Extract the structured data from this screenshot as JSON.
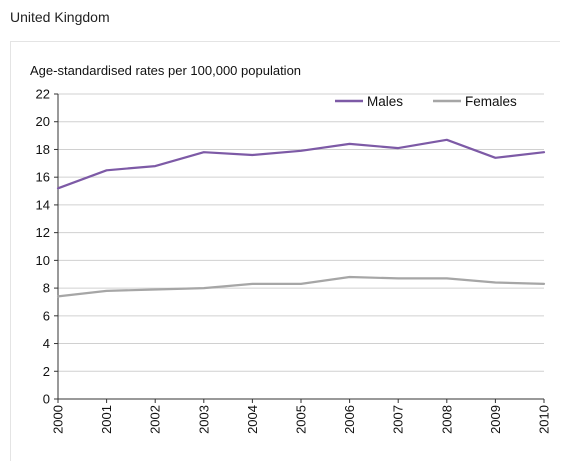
{
  "subtitle": "United Kingdom",
  "chart_data": {
    "type": "line",
    "ylabel": "Age-standardised rates per 100,000 population",
    "categories": [
      "2000",
      "2001",
      "2002",
      "2003",
      "2004",
      "2005",
      "2006",
      "2007",
      "2008",
      "2009",
      "2010"
    ],
    "series": [
      {
        "name": "Males",
        "color": "#7d5aa6",
        "values": [
          15.2,
          16.5,
          16.8,
          17.8,
          17.6,
          17.9,
          18.4,
          18.1,
          18.7,
          17.4,
          17.8
        ]
      },
      {
        "name": "Females",
        "color": "#a6a6a6",
        "values": [
          7.4,
          7.8,
          7.9,
          8.0,
          8.3,
          8.3,
          8.8,
          8.7,
          8.7,
          8.4,
          8.3
        ]
      }
    ],
    "ylim": [
      0,
      22
    ],
    "yticks": [
      0,
      2,
      4,
      6,
      8,
      10,
      12,
      14,
      16,
      18,
      20,
      22
    ],
    "grid": true,
    "legend_position": "top-right"
  }
}
